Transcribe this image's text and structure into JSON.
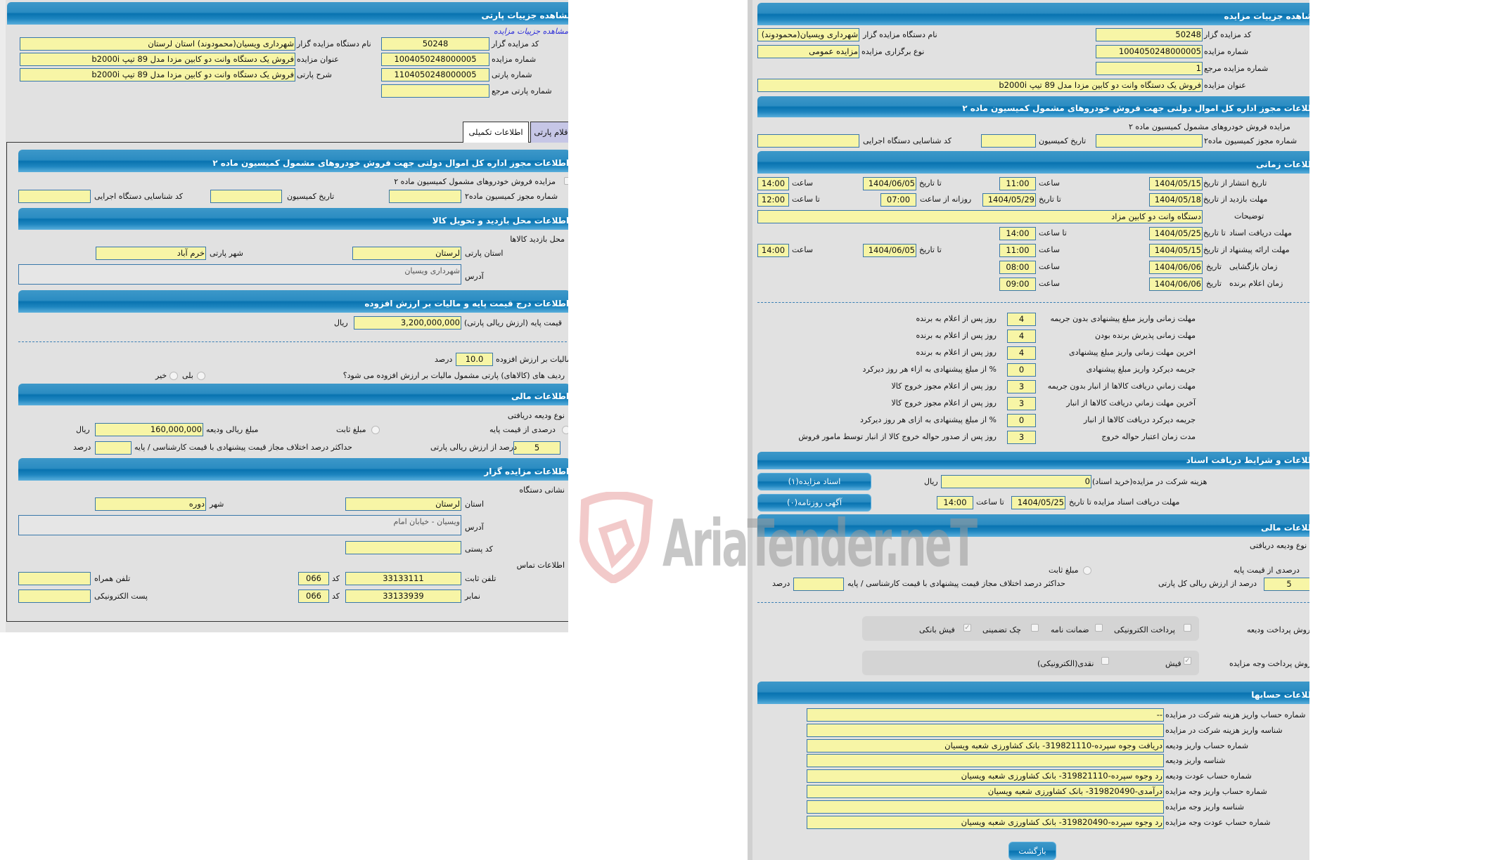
{
  "watermark": "AriaTender.neT",
  "colors": {
    "header_blue": "#0873b0",
    "field_yellow": "#f7f5a6",
    "field_border": "#3877aa",
    "panel_gray": "#e1e1e1",
    "inactive_tab": "#c6c6e6"
  },
  "left": {
    "title": "مشاهده جزییات پارتی",
    "auction_details_link": "مشاهده جزییات مزایده",
    "fields": {
      "auctioneer_code_label": "کد مزایده گزار",
      "auctioneer_code": "50248",
      "auctioneer_name_label": "نام دستگاه مزایده گزار",
      "auctioneer_name": "شهرداری ویسیان(محمودوند) استان لرستان",
      "auction_number_label": "شماره مزایده",
      "auction_number": "1004050248000005",
      "auction_title_label": "عنوان مزایده",
      "auction_title": "فروش یک دستگاه وانت دو کابین مزدا مدل 89 تیپ b2000i",
      "lot_number_label": "شماره پارتی",
      "lot_number": "1104050248000005",
      "lot_desc_label": "شرح پارتی",
      "lot_desc": "فروش یک دستگاه وانت دو کابین مزدا مدل 89 تیپ b2000i",
      "lot_ref_label": "شماره پارتی مرجع",
      "lot_ref": ""
    },
    "tabs": [
      {
        "label": "اطلاعات تکمیلی",
        "active": true
      },
      {
        "label": "اقلام پارتی",
        "active": false
      }
    ],
    "permit": {
      "title": "اطلاعات مجوز اداره کل اموال دولتی جهت فروش خودروهای مشمول کمیسیون ماده ۲",
      "checkbox_label": "مزایده فروش خودروهای مشمول کمیسیون ماده ۲",
      "checked": false,
      "number_label": "شماره مجوز کمیسیون ماده۲",
      "number": "",
      "date_label": "تاریخ کمیسیون",
      "date": "",
      "exec_code_label": "کد شناسایی دستگاه اجرایی",
      "exec_code": ""
    },
    "visit": {
      "title": "اطلاعات محل بازدید و تحویل کالا",
      "location_label": "محل بازدید کالاها",
      "province_label": "استان پارتی",
      "province": "لرستان",
      "city_label": "شهر پارتی",
      "city": "خرم آباد",
      "address_label": "آدرس",
      "address": "شهرداری ویسیان"
    },
    "price": {
      "title": "اطلاعات درج قیمت پایه و مالیات بر ارزش افزوده",
      "base_price_label": "قیمت پایه (ارزش ریالی پارتی)",
      "base_price": "3,200,000,000",
      "currency": "ریال",
      "vat_label": "مالیات بر ارزش افزوده",
      "vat": "10.0",
      "vat_unit": "درصد",
      "vat_question": "ردیف های (کالاهای) پارتی مشمول مالیات بر ارزش افزوده می شود؟",
      "yes_label": "بلی",
      "no_label": "خیر"
    },
    "finance": {
      "title": "اطلاعات مالی",
      "deposit_type_label": "نوع ودیعه دریافتی",
      "percent_option": "درصدی از قیمت پایه",
      "fixed_option": "مبلغ ثابت",
      "amount_label": "مبلغ ریالی ودیعه",
      "amount": "160,000,000",
      "amount_currency": "ریال",
      "percent_value": "5",
      "percent_value_label": "درصد از ارزش ریالی پارتی",
      "max_diff_label": "حداکثر درصد اختلاف مجاز قیمت پیشنهادی با قیمت کارشناسی / پایه",
      "max_diff": "",
      "max_diff_unit": "درصد"
    },
    "auctioneer": {
      "title": "اطلاعات مزایده گزار",
      "address_heading": "نشانی دستگاه",
      "province_label": "استان",
      "province": "لرستان",
      "city_label": "شهر",
      "city": "دوره",
      "address_label": "آدرس",
      "address": "ویسیان - خیابان امام",
      "postal_label": "کد پستی",
      "postal": "",
      "contact_heading": "اطلاعات تماس",
      "phone_label": "تلفن ثابت",
      "phone": "33133111",
      "code_label": "کد",
      "phone_code": "066",
      "mobile_label": "تلفن همراه",
      "mobile": "",
      "fax_label": "نمابر",
      "fax": "33133939",
      "fax_code": "066",
      "email_label": "پست الکترونیکی",
      "email": ""
    }
  },
  "right": {
    "title": "مشاهده جزییات مزایده",
    "fields": {
      "auctioneer_code_label": "کد مزایده گزار",
      "auctioneer_code": "50248",
      "auctioneer_name_label": "نام دستگاه مزایده گزار",
      "auctioneer_name": "شهرداری ویسیان(محمودوند) استان لرستان",
      "auction_number_label": "شماره مزایده",
      "auction_number": "1004050248000005",
      "auction_type_label": "نوع برگزاری مزایده",
      "auction_type": "مزایده عمومی",
      "ref_number_label": "شماره مزایده مرجع",
      "ref_number": "1",
      "auction_title_label": "عنوان مزایده",
      "auction_title": "فروش یک دستگاه وانت دو کابین مزدا مدل 89 تیپ b2000i"
    },
    "permit": {
      "title": "اطلاعات مجوز اداره کل اموال دولتی جهت فروش خودروهای مشمول کمیسیون ماده ۲",
      "checkbox_label": "مزایده فروش خودروهای مشمول کمیسیون ماده ۲",
      "checked": false,
      "number_label": "شماره مجوز کمیسیون ماده۲",
      "number": "",
      "date_label": "تاریخ کمیسیون",
      "date": "",
      "exec_code_label": "کد شناسایی دستگاه اجرایی",
      "exec_code": ""
    },
    "timing": {
      "title": "اطلاعات زمانی",
      "publish": {
        "label": "تاریخ انتشار",
        "from_label": "از تاریخ",
        "from_date": "1404/05/15",
        "from_time_label": "ساعت",
        "from_time": "11:00",
        "to_label": "تا تاریخ",
        "to_date": "1404/06/05",
        "to_time_label": "ساعت",
        "to_time": "14:00"
      },
      "visit": {
        "label": "مهلت بازدید",
        "from_label": "از تاریخ",
        "from_date": "1404/05/18",
        "to_label": "تا تاریخ",
        "to_date": "1404/05/29",
        "daily_from_label": "روزانه از ساعت",
        "daily_from": "07:00",
        "daily_to_label": "تا ساعت",
        "daily_to": "12:00"
      },
      "description": {
        "label": "توضیحات",
        "value": "دستگاه وانت دو کابین مزاد"
      },
      "docs": {
        "label": "مهلت دریافت اسناد",
        "to_label": "تا تاریخ",
        "to_date": "1404/05/25",
        "time_label": "تا ساعت",
        "time": "14:00"
      },
      "offer": {
        "label": "مهلت ارائه پیشنهاد",
        "from_label": "از تاریخ",
        "from_date": "1404/05/15",
        "from_time_label": "ساعت",
        "from_time": "11:00",
        "to_label": "تا تاریخ",
        "to_date": "1404/06/05",
        "to_time_label": "ساعت",
        "to_time": "14:00"
      },
      "opening": {
        "label": "زمان بازگشایی",
        "date_label": "تاریخ",
        "date": "1404/06/06",
        "time_label": "ساعت",
        "time": "08:00"
      },
      "winner": {
        "label": "زمان اعلام برنده",
        "date_label": "تاریخ",
        "date": "1404/06/06",
        "time_label": "ساعت",
        "time": "09:00"
      }
    },
    "deadlines": [
      {
        "label": "مهلت زمانی واریز مبلغ پیشنهادی بدون جریمه",
        "value": "4",
        "suffix": "روز پس از اعلام به برنده"
      },
      {
        "label": "مهلت زمانی پذیرش برنده بودن",
        "value": "4",
        "suffix": "روز پس از اعلام به برنده"
      },
      {
        "label": "اخرین مهلت زمانی واریز مبلغ پیشنهادی",
        "value": "4",
        "suffix": "روز پس از اعلام به برنده"
      },
      {
        "label": "جریمه دیرکرد واریز مبلغ پیشنهادی",
        "value": "0",
        "suffix": "% از مبلغ پیشنهادی به ازاء هر روز دیرکرد"
      },
      {
        "label": "مهلت زماني دریافت کالاها از انبار بدون جریمه",
        "value": "3",
        "suffix": "روز پس از اعلام مجوز خروج کالا"
      },
      {
        "label": "آخرین مهلت زماني دریافت کالاها از انبار",
        "value": "3",
        "suffix": "روز پس از اعلام مجوز خروج کالا"
      },
      {
        "label": "جریمه دیرکرد دریافت کالاها از انبار",
        "value": "0",
        "suffix": "% از مبلغ پیشنهادی به ازای هر روز دیرکرد"
      },
      {
        "label": "مدت زمان اعتبار حواله خروج",
        "value": "3",
        "suffix": "روز پس از صدور حواله خروج کالا از انبار توسط مامور فروش"
      }
    ],
    "documents": {
      "title": "اطلاعات و شرایط دریافت اسناد",
      "docs_button": "اسناد مزایده(۱)",
      "newspaper_button": "آگهی روزنامه(۰)",
      "cost_label": "هزینه شرکت در مزایده(خرید اسناد)",
      "cost": "0",
      "cost_currency": "ریال",
      "deadline_label": "مهلت دریافت اسناد مزایده تا تاریخ",
      "deadline_date": "1404/05/25",
      "deadline_time_label": "تا ساعت",
      "deadline_time": "14:00"
    },
    "finance": {
      "title": "اطلاعات مالی",
      "deposit_type_label": "نوع ودیعه دریافتی",
      "percent_option": "درصدی از قیمت پایه",
      "fixed_option": "مبلغ ثابت",
      "percent_value": "5",
      "percent_value_label": "درصد از ارزش ریالی کل پارتی",
      "max_diff_label": "حداکثر درصد اختلاف مجاز قیمت پیشنهادی با قیمت کارشناسی / پایه",
      "max_diff": "",
      "max_diff_unit": "درصد",
      "deposit_methods_label": "روش پرداخت ودیعه",
      "deposit_methods": [
        {
          "label": "پرداخت الکترونیکی",
          "checked": false
        },
        {
          "label": "ضمانت نامه",
          "checked": false
        },
        {
          "label": "چک تضمینی",
          "checked": false
        },
        {
          "label": "فیش بانکی",
          "checked": true
        }
      ],
      "payment_methods_label": "روش پرداخت وجه مزایده",
      "payment_methods": [
        {
          "label": "فیش",
          "checked": true
        },
        {
          "label": "نقدی(الکترونیکی)",
          "checked": false
        }
      ]
    },
    "accounts": {
      "title": "اطلاعات حسابها",
      "rows": [
        {
          "label": "شماره حساب واریز هزینه شرکت در مزایده",
          "value": "--"
        },
        {
          "label": "شناسه واریز هزینه شرکت در مزایده",
          "value": ""
        },
        {
          "label": "شماره حساب واریز ودیعه",
          "value": "دریافت وجوه سپرده-319821110- بانک کشاورزی شعبه ویسیان"
        },
        {
          "label": "شناسه واریز ودیعه",
          "value": ""
        },
        {
          "label": "شماره حساب عودت ودیعه",
          "value": "رد وجوه سپرده-319821110- بانک کشاورزی شعبه ویسیان"
        },
        {
          "label": "شماره حساب واریز وجه مزایده",
          "value": "درآمدی-319820490- بانک کشاورزی شعبه ویسیان"
        },
        {
          "label": "شناسه واریز وجه مزایده",
          "value": ""
        },
        {
          "label": "شماره حساب عودت وجه مزایده",
          "value": "رد وجوه سپرده-319820490- بانک کشاورزی شعبه ویسیان"
        }
      ]
    },
    "back_button": "بازگشت"
  }
}
